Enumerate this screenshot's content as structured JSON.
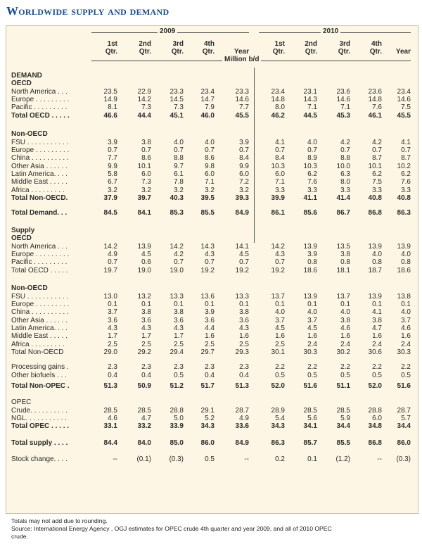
{
  "title": "Worldwide supply and demand",
  "years": [
    "2009",
    "2010"
  ],
  "column_headers": [
    [
      "1st",
      "Qtr."
    ],
    [
      "2nd",
      "Qtr."
    ],
    [
      "3rd",
      "Qtr."
    ],
    [
      "4th",
      "Qtr."
    ],
    [
      "",
      "Year"
    ],
    [
      "1st",
      "Qtr."
    ],
    [
      "2nd",
      "Qtr."
    ],
    [
      "3rd",
      "Qtr."
    ],
    [
      "4th",
      "Qtr."
    ],
    [
      "",
      "Year"
    ]
  ],
  "unit_label": "Million b/d",
  "rows": [
    {
      "label": "DEMAND",
      "values": [],
      "style": "head"
    },
    {
      "label": "OECD",
      "values": [],
      "style": "head"
    },
    {
      "label": "North America . . .",
      "values": [
        "23.5",
        "22.9",
        "23.3",
        "23.4",
        "23.3",
        "23.4",
        "23.1",
        "23.6",
        "23.6",
        "23.4"
      ]
    },
    {
      "label": "Europe . . . . . . . . .",
      "values": [
        "14.9",
        "14.2",
        "14.5",
        "14.7",
        "14.6",
        "14.8",
        "14.3",
        "14.6",
        "14.8",
        "14.6"
      ]
    },
    {
      "label": "Pacific . . . . . . . . .",
      "values": [
        "8.1",
        "7.3",
        "7.3",
        "7.9",
        "7.7",
        "8.0",
        "7.1",
        "7.1",
        "7.6",
        "7.5"
      ]
    },
    {
      "label": "Total OECD . . . . .",
      "values": [
        "46.6",
        "44.4",
        "45.1",
        "46.0",
        "45.5",
        "46.2",
        "44.5",
        "45.3",
        "46.1",
        "45.5"
      ],
      "style": "bold"
    },
    {
      "label": "Non-OECD",
      "values": [],
      "style": "head"
    },
    {
      "label": "FSU . . . . . . . . . . .",
      "values": [
        "3.9",
        "3.8",
        "4.0",
        "4.0",
        "3.9",
        "4.1",
        "4.0",
        "4.2",
        "4.2",
        "4.1"
      ]
    },
    {
      "label": "Europe . . . . . . . . .",
      "values": [
        "0.7",
        "0.7",
        "0.7",
        "0.7",
        "0.7",
        "0.7",
        "0.7",
        "0.7",
        "0.7",
        "0.7"
      ]
    },
    {
      "label": "China . . . . . . . . . .",
      "values": [
        "7.7",
        "8.6",
        "8.8",
        "8.6",
        "8.4",
        "8.4",
        "8.9",
        "8.8",
        "8.7",
        "8.7"
      ]
    },
    {
      "label": "Other Asia . . . . . .",
      "values": [
        "9.9",
        "10.1",
        "9.7",
        "9.8",
        "9.9",
        "10.3",
        "10.3",
        "10.0",
        "10.1",
        "10.2"
      ]
    },
    {
      "label": "Latin America. . . .",
      "values": [
        "5.8",
        "6.0",
        "6.1",
        "6.0",
        "6.0",
        "6.0",
        "6.2",
        "6.3",
        "6.2",
        "6.2"
      ]
    },
    {
      "label": "Middle East . . . . .",
      "values": [
        "6.7",
        "7.3",
        "7.8",
        "7.1",
        "7.2",
        "7.1",
        "7.6",
        "8.0",
        "7.5",
        "7.6"
      ]
    },
    {
      "label": "Africa . . . . . . . . .",
      "values": [
        "3.2",
        "3.2",
        "3.2",
        "3.2",
        "3.2",
        "3.3",
        "3.3",
        "3.3",
        "3.3",
        "3.3"
      ]
    },
    {
      "label": "Total Non-OECD.",
      "values": [
        "37.9",
        "39.7",
        "40.3",
        "39.5",
        "39.3",
        "39.9",
        "41.1",
        "41.4",
        "40.8",
        "40.8"
      ],
      "style": "bold"
    },
    {
      "label": "Total Demand. . .",
      "values": [
        "84.5",
        "84.1",
        "85.3",
        "85.5",
        "84.9",
        "86.1",
        "85.6",
        "86.7",
        "86.8",
        "86.3"
      ],
      "style": "bold"
    },
    {
      "label": "Supply",
      "values": [],
      "style": "head"
    },
    {
      "label": "OECD",
      "values": [],
      "style": "head"
    },
    {
      "label": "North America . . .",
      "values": [
        "14.2",
        "13.9",
        "14.2",
        "14.3",
        "14.1",
        "14.2",
        "13.9",
        "13.5",
        "13.9",
        "13.9"
      ]
    },
    {
      "label": "Europe . . . . . . . . .",
      "values": [
        "4.9",
        "4.5",
        "4.2",
        "4.3",
        "4.5",
        "4.3",
        "3.9",
        "3.8",
        "4.0",
        "4.0"
      ]
    },
    {
      "label": "Pacific . . . . . . . . .",
      "values": [
        "0.7",
        "0.6",
        "0.7",
        "0.7",
        "0.7",
        "0.7",
        "0.8",
        "0.8",
        "0.8",
        "0.8"
      ]
    },
    {
      "label": "Total OECD . . . . .",
      "values": [
        "19.7",
        "19.0",
        "19.0",
        "19.2",
        "19.2",
        "19.2",
        "18.6",
        "18.1",
        "18.7",
        "18.6"
      ]
    },
    {
      "label": "Non-OECD",
      "values": [],
      "style": "head"
    },
    {
      "label": "FSU . . . . . . . . . . .",
      "values": [
        "13.0",
        "13.2",
        "13.3",
        "13.6",
        "13.3",
        "13.7",
        "13.9",
        "13.7",
        "13.9",
        "13.8"
      ]
    },
    {
      "label": "Europe . . . . . . . . .",
      "values": [
        "0.1",
        "0.1",
        "0.1",
        "0.1",
        "0.1",
        "0.1",
        "0.1",
        "0.1",
        "0.1",
        "0.1"
      ]
    },
    {
      "label": "China . . . . . . . . . .",
      "values": [
        "3.7",
        "3.8",
        "3.8",
        "3.9",
        "3.8",
        "4.0",
        "4.0",
        "4.0",
        "4.1",
        "4.0"
      ]
    },
    {
      "label": "Other Asia . . . . . .",
      "values": [
        "3.6",
        "3.6",
        "3.6",
        "3.6",
        "3.6",
        "3.7",
        "3.7",
        "3.8",
        "3.8",
        "3.7"
      ]
    },
    {
      "label": "Latin America. . . .",
      "values": [
        "4.3",
        "4.3",
        "4.3",
        "4.4",
        "4.3",
        "4.5",
        "4.5",
        "4.6",
        "4.7",
        "4.6"
      ]
    },
    {
      "label": "Middle East . . . . .",
      "values": [
        "1.7",
        "1.7",
        "1.7",
        "1.6",
        "1.6",
        "1.6",
        "1.6",
        "1.6",
        "1.6",
        "1.6"
      ]
    },
    {
      "label": "Africa . . . . . . . . .",
      "values": [
        "2.5",
        "2.5",
        "2.5",
        "2.5",
        "2.5",
        "2.5",
        "2.4",
        "2.4",
        "2.4",
        "2.4"
      ]
    },
    {
      "label": "Total Non-OECD",
      "values": [
        "29.0",
        "29.2",
        "29.4",
        "29.7",
        "29.3",
        "30.1",
        "30.3",
        "30.2",
        "30.6",
        "30.3"
      ]
    },
    {
      "label": "Processing gains .",
      "values": [
        "2.3",
        "2.3",
        "2.3",
        "2.3",
        "2.3",
        "2.2",
        "2.2",
        "2.2",
        "2.2",
        "2.2"
      ]
    },
    {
      "label": "Other biofuels . . .",
      "values": [
        "0.4",
        "0.4",
        "0.5",
        "0.4",
        "0.4",
        "0.5",
        "0.5",
        "0.5",
        "0.5",
        "0.5"
      ]
    },
    {
      "label": "Total Non-OPEC .",
      "values": [
        "51.3",
        "50.9",
        "51.2",
        "51.7",
        "51.3",
        "52.0",
        "51.6",
        "51.1",
        "52.0",
        "51.6"
      ],
      "style": "bold"
    },
    {
      "label": "OPEC",
      "values": [],
      "style": "plainhead"
    },
    {
      "label": "Crude. . . . . . . . . .",
      "values": [
        "28.5",
        "28.5",
        "28.8",
        "29.1",
        "28.7",
        "28.9",
        "28.5",
        "28.5",
        "28.8",
        "28.7"
      ]
    },
    {
      "label": "NGL. . . . . . . . . . .",
      "values": [
        "4.6",
        "4.7",
        "5.0",
        "5.2",
        "4.9",
        "5.4",
        "5.6",
        "5.9",
        "6.0",
        "5.7"
      ]
    },
    {
      "label": "Total OPEC . . . . .",
      "values": [
        "33.1",
        "33.2",
        "33.9",
        "34.3",
        "33.6",
        "34.3",
        "34.1",
        "34.4",
        "34.8",
        "34.4"
      ],
      "style": "bold"
    },
    {
      "label": "Total supply . . . .",
      "values": [
        "84.4",
        "84.0",
        "85.0",
        "86.0",
        "84.9",
        "86.3",
        "85.7",
        "85.5",
        "86.8",
        "86.0"
      ],
      "style": "bold"
    },
    {
      "label": "Stock change. . . .",
      "values": [
        "--",
        "(0.1)",
        "(0.3)",
        "0.5",
        "--",
        "0.2",
        "0.1",
        "(1.2)",
        "--",
        "(0.3)"
      ]
    }
  ],
  "notes": [
    "Totals may not add due to rounding.",
    "Source: International Energy Agency , OGJ estimates for OPEC crude 4th quarter and year 2009, and all of 2010 OPEC",
    "crude."
  ]
}
